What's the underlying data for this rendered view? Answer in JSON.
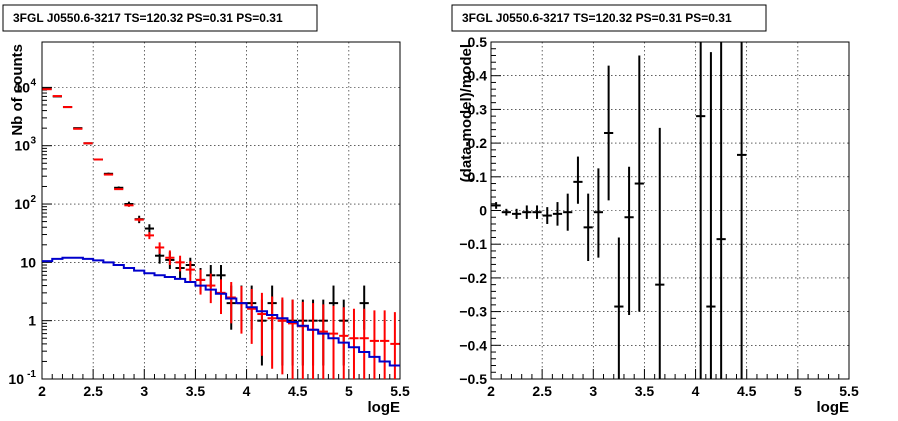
{
  "chart_data": [
    {
      "type": "scatter",
      "title": "3FGL J0550.6-3217 TS=120.32 PS=0.31 PS=0.31",
      "xlabel": "logE",
      "ylabel": "Nb of counts",
      "xlim": [
        2,
        5.5
      ],
      "ylim": [
        0.1,
        60000
      ],
      "yscale": "log",
      "grid": true,
      "xticks": [
        "2",
        "2.5",
        "3",
        "3.5",
        "4",
        "4.5",
        "5",
        "5.5"
      ],
      "yticks": [
        {
          "value": 0.1,
          "label": "10",
          "exp": "-1"
        },
        {
          "value": 1,
          "label": "1",
          "exp": ""
        },
        {
          "value": 10,
          "label": "10",
          "exp": ""
        },
        {
          "value": 100,
          "label": "10",
          "exp": "2"
        },
        {
          "value": 1000,
          "label": "10",
          "exp": "3"
        },
        {
          "value": 10000,
          "label": "10",
          "exp": "4"
        }
      ],
      "series": [
        {
          "color": "#000000",
          "style": "errorbar",
          "x": [
            2.05,
            2.15,
            2.25,
            2.35,
            2.45,
            2.55,
            2.65,
            2.75,
            2.85,
            2.95,
            3.05,
            3.15,
            3.25,
            3.35,
            3.45,
            3.55,
            3.65,
            3.75,
            3.85,
            3.95,
            4.05,
            4.15,
            4.25,
            4.35,
            4.45,
            4.55,
            4.65,
            4.75,
            4.85,
            4.95,
            5.05,
            5.15,
            5.25,
            5.35,
            5.45
          ],
          "y": [
            9500,
            7000,
            4600,
            2000,
            1100,
            580,
            330,
            190,
            100,
            55,
            38,
            13,
            11,
            8,
            9,
            5,
            6,
            6,
            2,
            2,
            2,
            1,
            2,
            1,
            1,
            1,
            1,
            1,
            2,
            1,
            0,
            2,
            0,
            0,
            0
          ],
          "ylow": [
            9300,
            6850,
            4500,
            1950,
            1070,
            560,
            315,
            180,
            90,
            47,
            31,
            9.5,
            7.7,
            5.3,
            6.2,
            3.0,
            3.7,
            3.7,
            0.7,
            0.7,
            0.7,
            0.17,
            0.7,
            0.17,
            0.17,
            0.17,
            0.17,
            0.17,
            0.7,
            0.17,
            0,
            0.7,
            0,
            0,
            0
          ],
          "yhigh": [
            9700,
            7150,
            4700,
            2050,
            1130,
            600,
            345,
            200,
            110,
            63,
            45,
            17,
            15,
            11,
            12,
            8,
            9,
            9,
            4,
            4,
            4,
            2.3,
            4,
            2.3,
            2.3,
            2.3,
            2.3,
            2.3,
            4,
            2.3,
            0,
            4,
            0,
            0,
            0
          ]
        },
        {
          "color": "#ff0000",
          "style": "errorbar",
          "x": [
            2.05,
            2.15,
            2.25,
            2.35,
            2.45,
            2.55,
            2.65,
            2.75,
            2.85,
            2.95,
            3.05,
            3.15,
            3.25,
            3.35,
            3.45,
            3.55,
            3.65,
            3.75,
            3.85,
            3.95,
            4.05,
            4.15,
            4.25,
            4.35,
            4.45,
            4.55,
            4.65,
            4.75,
            4.85,
            4.95,
            5.05,
            5.15,
            5.25,
            5.35,
            5.45
          ],
          "y": [
            9300,
            7100,
            4600,
            1950,
            1100,
            580,
            320,
            180,
            95,
            54,
            29,
            18,
            12,
            10,
            7.5,
            5,
            4,
            3,
            2.5,
            2,
            1.6,
            1.3,
            1.1,
            1.0,
            0.9,
            0.8,
            0.7,
            0.65,
            0.6,
            0.55,
            0.5,
            0.5,
            0.45,
            0.45,
            0.4
          ],
          "ylow": [
            9200,
            7000,
            4550,
            1920,
            1080,
            570,
            312,
            174,
            90,
            50,
            25,
            14,
            9,
            7,
            4.8,
            2.8,
            2.0,
            1.3,
            0.9,
            0.6,
            0.4,
            0.25,
            0.15,
            0.12,
            0.1,
            0.1,
            0.1,
            0.1,
            0.1,
            0.1,
            0.1,
            0.1,
            0.1,
            0.1,
            0.1
          ],
          "yhigh": [
            9400,
            7200,
            4650,
            1980,
            1120,
            590,
            328,
            186,
            100,
            58,
            33,
            22,
            16,
            13,
            10.5,
            7.5,
            6.4,
            5.1,
            4.6,
            3.9,
            3.5,
            3.0,
            2.6,
            2.5,
            2.3,
            2.1,
            2.0,
            1.9,
            1.8,
            1.7,
            1.6,
            1.6,
            1.5,
            1.5,
            1.4
          ]
        },
        {
          "color": "#0000cc",
          "style": "step",
          "x": [
            2.05,
            2.15,
            2.25,
            2.35,
            2.45,
            2.55,
            2.65,
            2.75,
            2.85,
            2.95,
            3.05,
            3.15,
            3.25,
            3.35,
            3.45,
            3.55,
            3.65,
            3.75,
            3.85,
            3.95,
            4.05,
            4.15,
            4.25,
            4.35,
            4.45,
            4.55,
            4.65,
            4.75,
            4.85,
            4.95,
            5.05,
            5.15,
            5.25,
            5.35,
            5.45
          ],
          "y": [
            10.5,
            11.5,
            12,
            12,
            11.5,
            10.8,
            10,
            9,
            8,
            7.2,
            6.5,
            6,
            5.6,
            5.2,
            4.6,
            4.0,
            3.4,
            2.9,
            2.4,
            2.0,
            1.7,
            1.45,
            1.25,
            1.1,
            0.95,
            0.82,
            0.7,
            0.6,
            0.5,
            0.42,
            0.35,
            0.29,
            0.24,
            0.2,
            0.17
          ]
        }
      ]
    },
    {
      "type": "scatter",
      "title": "3FGL J0550.6-3217 TS=120.32 PS=0.31 PS=0.31",
      "xlabel": "logE",
      "ylabel": "(data-model)/model",
      "xlim": [
        2,
        5.5
      ],
      "ylim": [
        -0.5,
        0.5
      ],
      "grid": true,
      "xticks": [
        "2",
        "2.5",
        "3",
        "3.5",
        "4",
        "4.5",
        "5",
        "5.5"
      ],
      "yticks": [
        "−0.5",
        "−0.4",
        "−0.3",
        "−0.2",
        "−0.1",
        "0",
        "0.1",
        "0.2",
        "0.3",
        "0.4",
        "0.5"
      ],
      "series": [
        {
          "color": "#000000",
          "style": "errorbar",
          "x": [
            2.05,
            2.15,
            2.25,
            2.35,
            2.45,
            2.55,
            2.65,
            2.75,
            2.85,
            2.95,
            3.05,
            3.15,
            3.25,
            3.35,
            3.45,
            3.65,
            4.05,
            4.15,
            4.25,
            4.45
          ],
          "y": [
            0.015,
            -0.005,
            -0.01,
            -0.005,
            -0.005,
            -0.015,
            -0.01,
            -0.005,
            0.085,
            -0.05,
            -0.005,
            0.23,
            -0.285,
            -0.02,
            0.08,
            -0.22,
            0.28,
            -0.285,
            -0.085,
            0.165
          ],
          "ylow": [
            0.005,
            -0.015,
            -0.025,
            -0.025,
            -0.025,
            -0.04,
            -0.045,
            -0.06,
            0.02,
            -0.15,
            -0.14,
            0.03,
            -0.5,
            -0.31,
            -0.3,
            -0.5,
            -0.5,
            -0.5,
            -0.5,
            -0.5
          ],
          "yhigh": [
            0.025,
            0.005,
            0.005,
            0.015,
            0.015,
            0.01,
            0.025,
            0.05,
            0.16,
            0.05,
            0.125,
            0.43,
            -0.08,
            0.13,
            0.46,
            0.245,
            0.5,
            0.47,
            0.5,
            0.5
          ]
        }
      ]
    }
  ]
}
